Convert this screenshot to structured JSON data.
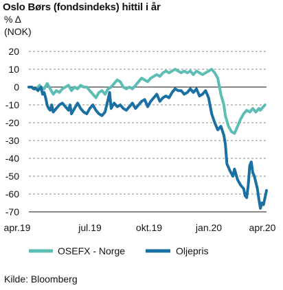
{
  "chart_data": {
    "type": "line",
    "title": "Oslo Børs (fondsindeks) hittil i år",
    "unit_line1": "% Δ",
    "unit_line2": "(NOK)",
    "source": "Kilde: Bloomberg",
    "ylim": [
      -70,
      20
    ],
    "yticks": [
      20,
      10,
      0,
      -10,
      -20,
      -30,
      -40,
      -50,
      -60,
      -70
    ],
    "xticks": [
      "apr.19",
      "jul.19",
      "okt.19",
      "jan.20",
      "apr.20"
    ],
    "grid": "horizontal dashed",
    "legend": "bottom",
    "series": [
      {
        "name": "OSEFX - Norge",
        "color": "#5bbdb4",
        "points": [
          [
            0,
            0
          ],
          [
            2,
            0
          ],
          [
            3,
            -1
          ],
          [
            5,
            -1
          ],
          [
            7,
            1
          ],
          [
            8,
            0
          ],
          [
            10,
            -1
          ],
          [
            12,
            2
          ],
          [
            14,
            -1
          ],
          [
            16,
            -4
          ],
          [
            18,
            -2
          ],
          [
            20,
            -3
          ],
          [
            22,
            -1
          ],
          [
            24,
            0
          ],
          [
            26,
            1
          ],
          [
            28,
            -2
          ],
          [
            30,
            0
          ],
          [
            32,
            -1
          ],
          [
            34,
            1
          ],
          [
            36,
            0
          ],
          [
            38,
            0
          ],
          [
            40,
            -2
          ],
          [
            42,
            -4
          ],
          [
            44,
            -6
          ],
          [
            46,
            -3
          ],
          [
            48,
            -2
          ],
          [
            50,
            -4
          ],
          [
            52,
            -1
          ],
          [
            54,
            0
          ],
          [
            56,
            2
          ],
          [
            58,
            4
          ],
          [
            60,
            3
          ],
          [
            62,
            0
          ],
          [
            64,
            -1
          ],
          [
            66,
            0
          ],
          [
            68,
            -1
          ],
          [
            70,
            1
          ],
          [
            72,
            3
          ],
          [
            74,
            5
          ],
          [
            76,
            4
          ],
          [
            78,
            3
          ],
          [
            80,
            5
          ],
          [
            82,
            6
          ],
          [
            84,
            7
          ],
          [
            86,
            6
          ],
          [
            88,
            8
          ],
          [
            90,
            9
          ],
          [
            92,
            8
          ],
          [
            94,
            9
          ],
          [
            96,
            10
          ],
          [
            98,
            9
          ],
          [
            100,
            8
          ],
          [
            102,
            9
          ],
          [
            104,
            8
          ],
          [
            106,
            9
          ],
          [
            108,
            7
          ],
          [
            110,
            9
          ],
          [
            112,
            8
          ],
          [
            114,
            7
          ],
          [
            116,
            8
          ],
          [
            118,
            9
          ],
          [
            120,
            10
          ],
          [
            122,
            8
          ],
          [
            124,
            5
          ],
          [
            126,
            -4
          ],
          [
            128,
            -10
          ],
          [
            129,
            -16
          ],
          [
            131,
            -22
          ],
          [
            133,
            -25
          ],
          [
            135,
            -26
          ],
          [
            137,
            -22
          ],
          [
            139,
            -18
          ],
          [
            141,
            -15
          ],
          [
            143,
            -13
          ],
          [
            145,
            -14
          ],
          [
            147,
            -12
          ],
          [
            149,
            -14
          ],
          [
            151,
            -12
          ],
          [
            152,
            -13
          ],
          [
            154,
            -11
          ],
          [
            155,
            -10
          ]
        ]
      },
      {
        "name": "Oljepris",
        "color": "#1a6fa3",
        "points": [
          [
            0,
            0
          ],
          [
            2,
            0
          ],
          [
            3,
            -1
          ],
          [
            5,
            -1
          ],
          [
            6,
            -2
          ],
          [
            8,
            0
          ],
          [
            9,
            -4
          ],
          [
            10,
            -3
          ],
          [
            11,
            -6
          ],
          [
            12,
            -10
          ],
          [
            13,
            -12
          ],
          [
            14,
            -13
          ],
          [
            15,
            -10
          ],
          [
            16,
            -14
          ],
          [
            18,
            -12
          ],
          [
            20,
            -10
          ],
          [
            22,
            -9
          ],
          [
            24,
            -11
          ],
          [
            26,
            -13
          ],
          [
            27,
            -10
          ],
          [
            28,
            -15
          ],
          [
            30,
            -12
          ],
          [
            32,
            -9
          ],
          [
            34,
            -12
          ],
          [
            36,
            -14
          ],
          [
            38,
            -15
          ],
          [
            40,
            -12
          ],
          [
            42,
            -10
          ],
          [
            44,
            -13
          ],
          [
            46,
            -15
          ],
          [
            48,
            -16
          ],
          [
            50,
            -14
          ],
          [
            52,
            -7
          ],
          [
            53,
            -3
          ],
          [
            54,
            -12
          ],
          [
            56,
            -9
          ],
          [
            58,
            -11
          ],
          [
            60,
            -10
          ],
          [
            62,
            -12
          ],
          [
            64,
            -13
          ],
          [
            66,
            -11
          ],
          [
            68,
            -9
          ],
          [
            70,
            -12
          ],
          [
            72,
            -10
          ],
          [
            74,
            -8
          ],
          [
            76,
            -7
          ],
          [
            78,
            -11
          ],
          [
            80,
            -8
          ],
          [
            82,
            -6
          ],
          [
            84,
            -4
          ],
          [
            86,
            -8
          ],
          [
            88,
            -6
          ],
          [
            90,
            -5
          ],
          [
            92,
            -6
          ],
          [
            94,
            -3
          ],
          [
            96,
            -1
          ],
          [
            98,
            -2
          ],
          [
            100,
            -2
          ],
          [
            102,
            -4
          ],
          [
            104,
            -3
          ],
          [
            106,
            -1
          ],
          [
            108,
            -3
          ],
          [
            110,
            -1
          ],
          [
            112,
            -5
          ],
          [
            114,
            -4
          ],
          [
            116,
            -2
          ],
          [
            118,
            -6
          ],
          [
            120,
            -15
          ],
          [
            122,
            -20
          ],
          [
            124,
            -24
          ],
          [
            126,
            -22
          ],
          [
            128,
            -27
          ],
          [
            129,
            -32
          ],
          [
            130,
            -43
          ],
          [
            132,
            -47
          ],
          [
            134,
            -50
          ],
          [
            135,
            -46
          ],
          [
            137,
            -52
          ],
          [
            139,
            -55
          ],
          [
            141,
            -57
          ],
          [
            142,
            -61
          ],
          [
            143,
            -62
          ],
          [
            144,
            -55
          ],
          [
            145,
            -44
          ],
          [
            146,
            -42
          ],
          [
            147,
            -48
          ],
          [
            148,
            -50
          ],
          [
            150,
            -57
          ],
          [
            151,
            -63
          ],
          [
            152,
            -68
          ],
          [
            153,
            -65
          ],
          [
            154,
            -66
          ],
          [
            155,
            -62
          ],
          [
            156,
            -58
          ]
        ]
      }
    ]
  }
}
